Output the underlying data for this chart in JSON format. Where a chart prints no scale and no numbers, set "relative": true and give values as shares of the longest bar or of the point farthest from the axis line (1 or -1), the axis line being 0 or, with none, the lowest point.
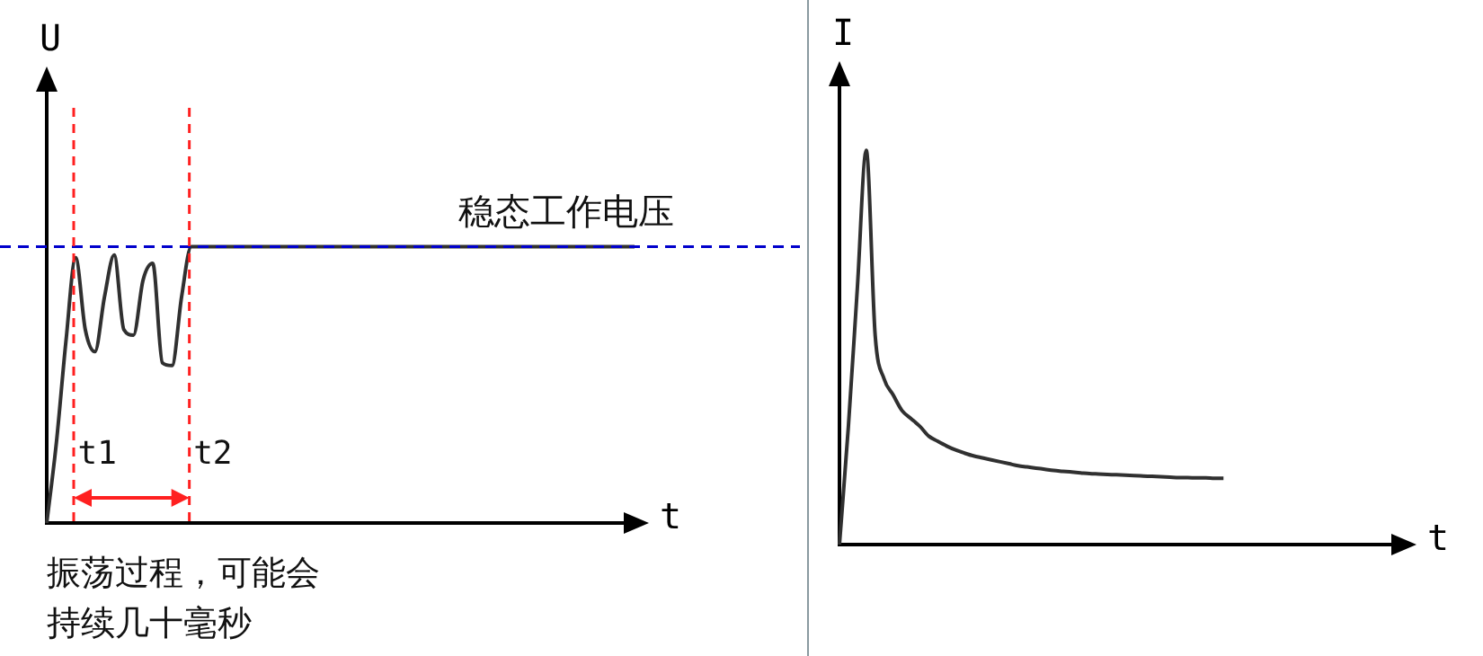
{
  "chart_data": [
    {
      "type": "line",
      "relative": true,
      "xlabel": "t",
      "ylabel": "U",
      "marker": "none",
      "categories": [
        null,
        null,
        null,
        null,
        null,
        null,
        null,
        null,
        null,
        null,
        null,
        null,
        null,
        null,
        null,
        null,
        null,
        null,
        null,
        null,
        null,
        null,
        null,
        null,
        null,
        null,
        null,
        null,
        null,
        null,
        null,
        null,
        null,
        null,
        null,
        null,
        null,
        null,
        null,
        null,
        null,
        null,
        null,
        null,
        null,
        null,
        null,
        null,
        null,
        null,
        null,
        null,
        null,
        null,
        null,
        null,
        null,
        null,
        null,
        null,
        null,
        null
      ],
      "series": [
        {
          "color": "#303030",
          "values": [
            0,
            0.29,
            0.66,
            0.96,
            0.7,
            0.62,
            0.82,
            0.97,
            0.7,
            0.68,
            0.88,
            0.94,
            0.58,
            0.57,
            0.82,
            1,
            1,
            1,
            1,
            1,
            1,
            1,
            1,
            1,
            1,
            1,
            1,
            1,
            1,
            1,
            1,
            1,
            1,
            1,
            1,
            1,
            1,
            1,
            1,
            1,
            1,
            1,
            1,
            1,
            1,
            1,
            1,
            1,
            1,
            1,
            1,
            1,
            1,
            1,
            1,
            1,
            1,
            1,
            1,
            1,
            1,
            1
          ]
        }
      ],
      "ref_lines": [
        {
          "axis": "y",
          "value": 1,
          "label": "稳态工作电压",
          "color": "#0000cc",
          "line_style": "dashed"
        }
      ],
      "annotations": [
        "t1",
        "t2",
        "振荡过程，可能会持续几十毫秒"
      ]
    },
    {
      "type": "line",
      "relative": true,
      "xlabel": "t",
      "ylabel": "I",
      "marker": "none",
      "categories": [
        null,
        null,
        null,
        null,
        null,
        null,
        null,
        null,
        null,
        null,
        null,
        null,
        null,
        null,
        null,
        null,
        null,
        null,
        null,
        null,
        null,
        null,
        null,
        null,
        null,
        null,
        null,
        null,
        null,
        null,
        null,
        null,
        null,
        null,
        null,
        null,
        null,
        null,
        null,
        null,
        null,
        null,
        null,
        null,
        null,
        null,
        null,
        null,
        null,
        null,
        null,
        null,
        null,
        null,
        null,
        null,
        null,
        null,
        null,
        null,
        null,
        null,
        null,
        null
      ],
      "series": [
        {
          "color": "#303030",
          "values": [
            0,
            0.3,
            0.65,
            1,
            0.53,
            0.42,
            0.38,
            0.34,
            0.32,
            0.3,
            0.275,
            0.262,
            0.25,
            0.24,
            0.232,
            0.225,
            0.22,
            0.215,
            0.21,
            0.205,
            0.2,
            0.197,
            0.194,
            0.191,
            0.188,
            0.186,
            0.184,
            0.182,
            0.18,
            0.179,
            0.178,
            0.177,
            0.176,
            0.175,
            0.174,
            0.173,
            0.172,
            0.171,
            0.17,
            0.17,
            0.169,
            0.169,
            0.168,
            0.168,
            null,
            null,
            null,
            null,
            null,
            null,
            null,
            null,
            null,
            null,
            null,
            null,
            null,
            null,
            null,
            null,
            null,
            null,
            null,
            null
          ]
        }
      ]
    }
  ]
}
